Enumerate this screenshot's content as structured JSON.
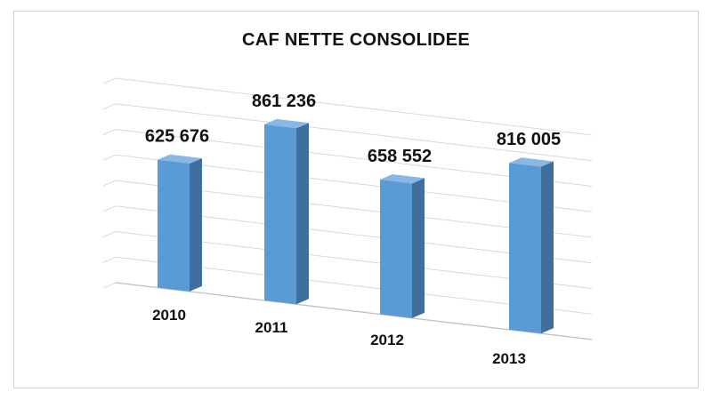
{
  "chart_data": {
    "type": "bar",
    "title": "CAF NETTE CONSOLIDEE",
    "categories": [
      "2010",
      "2011",
      "2012",
      "2013"
    ],
    "values": [
      625676,
      861236,
      658552,
      816005
    ],
    "value_labels": [
      "625 676",
      "861 236",
      "658 552",
      "816 005"
    ],
    "xlabel": "",
    "ylabel": "",
    "ylim": [
      0,
      1000000
    ],
    "grid": true,
    "legend": "none",
    "style": "3d-column",
    "colors": {
      "front": "#5b9bd5",
      "side": "#3f6f9c",
      "top": "#8ab8e6",
      "grid": "#d9d9d9"
    }
  }
}
